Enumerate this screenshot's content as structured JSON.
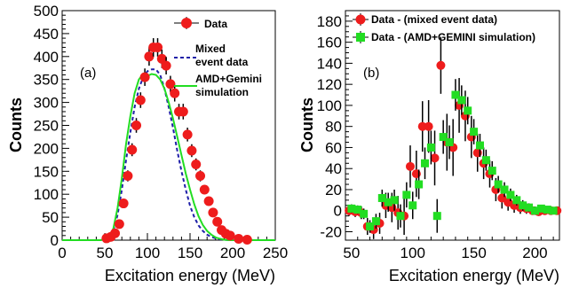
{
  "chart_data": [
    {
      "type": "scatter",
      "panel_label": "(a)",
      "xlabel": "Excitation energy (MeV)",
      "ylabel": "Counts",
      "xlim": [
        0,
        250
      ],
      "ylim": [
        0,
        500
      ],
      "xticks": [
        0,
        50,
        100,
        150,
        200,
        250
      ],
      "yticks": [
        0,
        50,
        100,
        150,
        200,
        250,
        300,
        350,
        400,
        450,
        500
      ],
      "legend": [
        {
          "label": "Data",
          "marker": "circle",
          "color": "#ee1c1c"
        },
        {
          "label": "Mixed",
          "label2": "event data",
          "style": "dashed",
          "color": "#1f1fa8"
        },
        {
          "label": "AMD+Gemini",
          "label2": "simulation",
          "style": "solid",
          "color": "#22dd22"
        }
      ],
      "series": [
        {
          "name": "Data",
          "kind": "points",
          "color": "#ee1c1c",
          "x": [
            52,
            57,
            62,
            67,
            72,
            77,
            82,
            87,
            92,
            97,
            102,
            107,
            112,
            117,
            122,
            127,
            132,
            137,
            142,
            147,
            152,
            157,
            162,
            167,
            172,
            177,
            182,
            187,
            192,
            197,
            207,
            217
          ],
          "y": [
            4,
            7,
            15,
            35,
            80,
            140,
            197,
            250,
            305,
            355,
            400,
            420,
            420,
            395,
            380,
            340,
            320,
            280,
            280,
            230,
            195,
            165,
            140,
            110,
            85,
            60,
            40,
            22,
            14,
            10,
            3,
            1
          ],
          "err": [
            2,
            3,
            4,
            6,
            9,
            12,
            14,
            16,
            17,
            19,
            20,
            20,
            20,
            20,
            19,
            18,
            18,
            17,
            17,
            15,
            14,
            13,
            12,
            10,
            9,
            8,
            6,
            5,
            4,
            3,
            2,
            1
          ]
        },
        {
          "name": "Mixed event data",
          "kind": "line",
          "color": "#1f1fa8",
          "x": [
            0,
            45,
            50,
            55,
            60,
            65,
            70,
            75,
            80,
            85,
            90,
            95,
            100,
            105,
            110,
            115,
            120,
            125,
            130,
            135,
            140,
            145,
            150,
            155,
            160,
            165,
            170,
            175,
            180,
            185,
            190,
            195,
            200,
            250
          ],
          "y": [
            0,
            0,
            2,
            5,
            20,
            55,
            110,
            175,
            235,
            290,
            330,
            355,
            368,
            372,
            372,
            360,
            330,
            290,
            245,
            195,
            150,
            110,
            75,
            50,
            32,
            20,
            12,
            7,
            4,
            2,
            1,
            0,
            0,
            0
          ]
        },
        {
          "name": "AMD+Gemini simulation",
          "kind": "line",
          "color": "#22dd22",
          "x": [
            0,
            45,
            50,
            55,
            60,
            65,
            70,
            75,
            80,
            85,
            90,
            95,
            100,
            105,
            110,
            115,
            120,
            125,
            130,
            135,
            140,
            145,
            150,
            155,
            160,
            165,
            170,
            175,
            180,
            185,
            190,
            195,
            200,
            250
          ],
          "y": [
            0,
            0,
            2,
            6,
            25,
            70,
            135,
            210,
            270,
            320,
            350,
            362,
            358,
            362,
            360,
            350,
            330,
            300,
            265,
            225,
            185,
            145,
            110,
            78,
            52,
            33,
            20,
            12,
            6,
            3,
            1,
            0,
            0,
            0
          ]
        }
      ]
    },
    {
      "type": "scatter",
      "panel_label": "(b)",
      "xlabel": "Excitation energy (MeV)",
      "ylabel": "Counts",
      "xlim": [
        45,
        220
      ],
      "ylim": [
        -28,
        190
      ],
      "xticks": [
        50,
        100,
        150,
        200
      ],
      "yticks": [
        -20,
        0,
        20,
        40,
        60,
        80,
        100,
        120,
        140,
        160,
        180
      ],
      "legend": [
        {
          "label": "Data - (mixed event data)",
          "marker": "circle",
          "color": "#ee1c1c"
        },
        {
          "label": "Data - (AMD+GEMINI simulation)",
          "marker": "square",
          "color": "#22dd22"
        }
      ],
      "series": [
        {
          "name": "Data - (mixed event data)",
          "kind": "points",
          "marker": "circle",
          "color": "#ee1c1c",
          "x": [
            48,
            53,
            58,
            63,
            68,
            73,
            78,
            83,
            88,
            93,
            98,
            103,
            108,
            113,
            118,
            123,
            128,
            133,
            138,
            143,
            148,
            153,
            158,
            163,
            168,
            173,
            178,
            183,
            188,
            193,
            198,
            203,
            208,
            213,
            218
          ],
          "y": [
            0,
            -1,
            -2,
            -15,
            -18,
            -12,
            5,
            3,
            -2,
            -5,
            42,
            35,
            80,
            80,
            50,
            138,
            65,
            60,
            100,
            90,
            70,
            55,
            45,
            35,
            20,
            12,
            8,
            5,
            3,
            2,
            0,
            -1,
            0,
            0,
            0
          ],
          "err": [
            5,
            5,
            6,
            8,
            9,
            10,
            12,
            14,
            16,
            18,
            20,
            22,
            24,
            25,
            26,
            27,
            27,
            27,
            26,
            24,
            20,
            18,
            15,
            13,
            11,
            10,
            8,
            7,
            6,
            5,
            4,
            4,
            3,
            3,
            3
          ]
        },
        {
          "name": "Data - (AMD+GEMINI simulation)",
          "kind": "points",
          "marker": "square",
          "color": "#22dd22",
          "x": [
            50,
            55,
            60,
            65,
            70,
            75,
            80,
            85,
            90,
            95,
            100,
            105,
            110,
            115,
            120,
            125,
            130,
            135,
            140,
            145,
            150,
            155,
            160,
            165,
            170,
            175,
            180,
            185,
            190,
            195,
            200,
            205,
            210,
            215
          ],
          "y": [
            2,
            1,
            -3,
            -15,
            -10,
            12,
            8,
            10,
            -5,
            15,
            5,
            25,
            45,
            60,
            -5,
            70,
            65,
            110,
            105,
            95,
            75,
            62,
            48,
            38,
            25,
            20,
            15,
            10,
            5,
            3,
            0,
            2,
            1,
            0
          ],
          "err": [
            4,
            4,
            5,
            6,
            7,
            8,
            9,
            10,
            11,
            12,
            13,
            14,
            15,
            16,
            16,
            16,
            16,
            15,
            14,
            13,
            12,
            11,
            10,
            9,
            8,
            7,
            6,
            5,
            5,
            4,
            4,
            3,
            3,
            3
          ]
        }
      ]
    }
  ]
}
